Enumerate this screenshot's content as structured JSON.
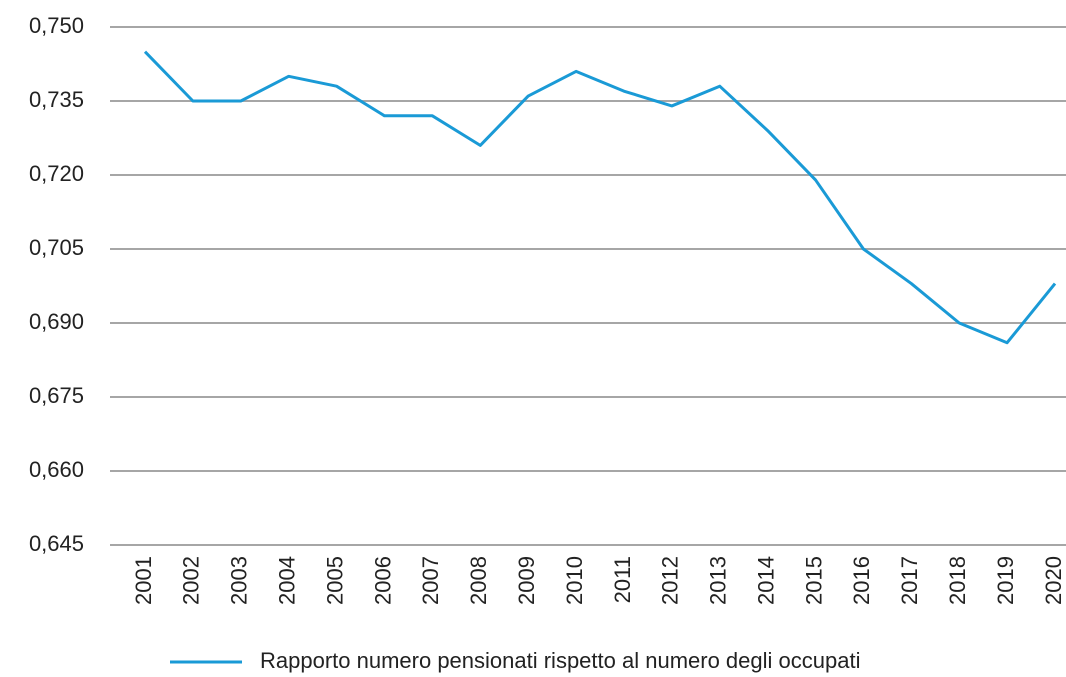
{
  "chart_data": {
    "type": "line",
    "categories": [
      "2001",
      "2002",
      "2003",
      "2004",
      "2005",
      "2006",
      "2007",
      "2008",
      "2009",
      "2010",
      "2011",
      "2012",
      "2013",
      "2014",
      "2015",
      "2016",
      "2017",
      "2018",
      "2019",
      "2020"
    ],
    "series": [
      {
        "name": "Rapporto numero pensionati rispetto al numero degli occupati",
        "color": "#1a9ad6",
        "values": [
          0.745,
          0.735,
          0.735,
          0.74,
          0.738,
          0.732,
          0.732,
          0.726,
          0.736,
          0.741,
          0.737,
          0.734,
          0.738,
          0.729,
          0.719,
          0.705,
          0.698,
          0.69,
          0.686,
          0.698
        ]
      }
    ],
    "ylim": [
      0.645,
      0.75
    ],
    "yticks": [
      {
        "value": 0.645,
        "label": "0,645"
      },
      {
        "value": 0.66,
        "label": "0,660"
      },
      {
        "value": 0.675,
        "label": "0,675"
      },
      {
        "value": 0.69,
        "label": "0,690"
      },
      {
        "value": 0.705,
        "label": "0,705"
      },
      {
        "value": 0.72,
        "label": "0,720"
      },
      {
        "value": 0.735,
        "label": "0,735"
      },
      {
        "value": 0.75,
        "label": "0,750"
      }
    ],
    "grid": true,
    "legend": "bottom"
  }
}
